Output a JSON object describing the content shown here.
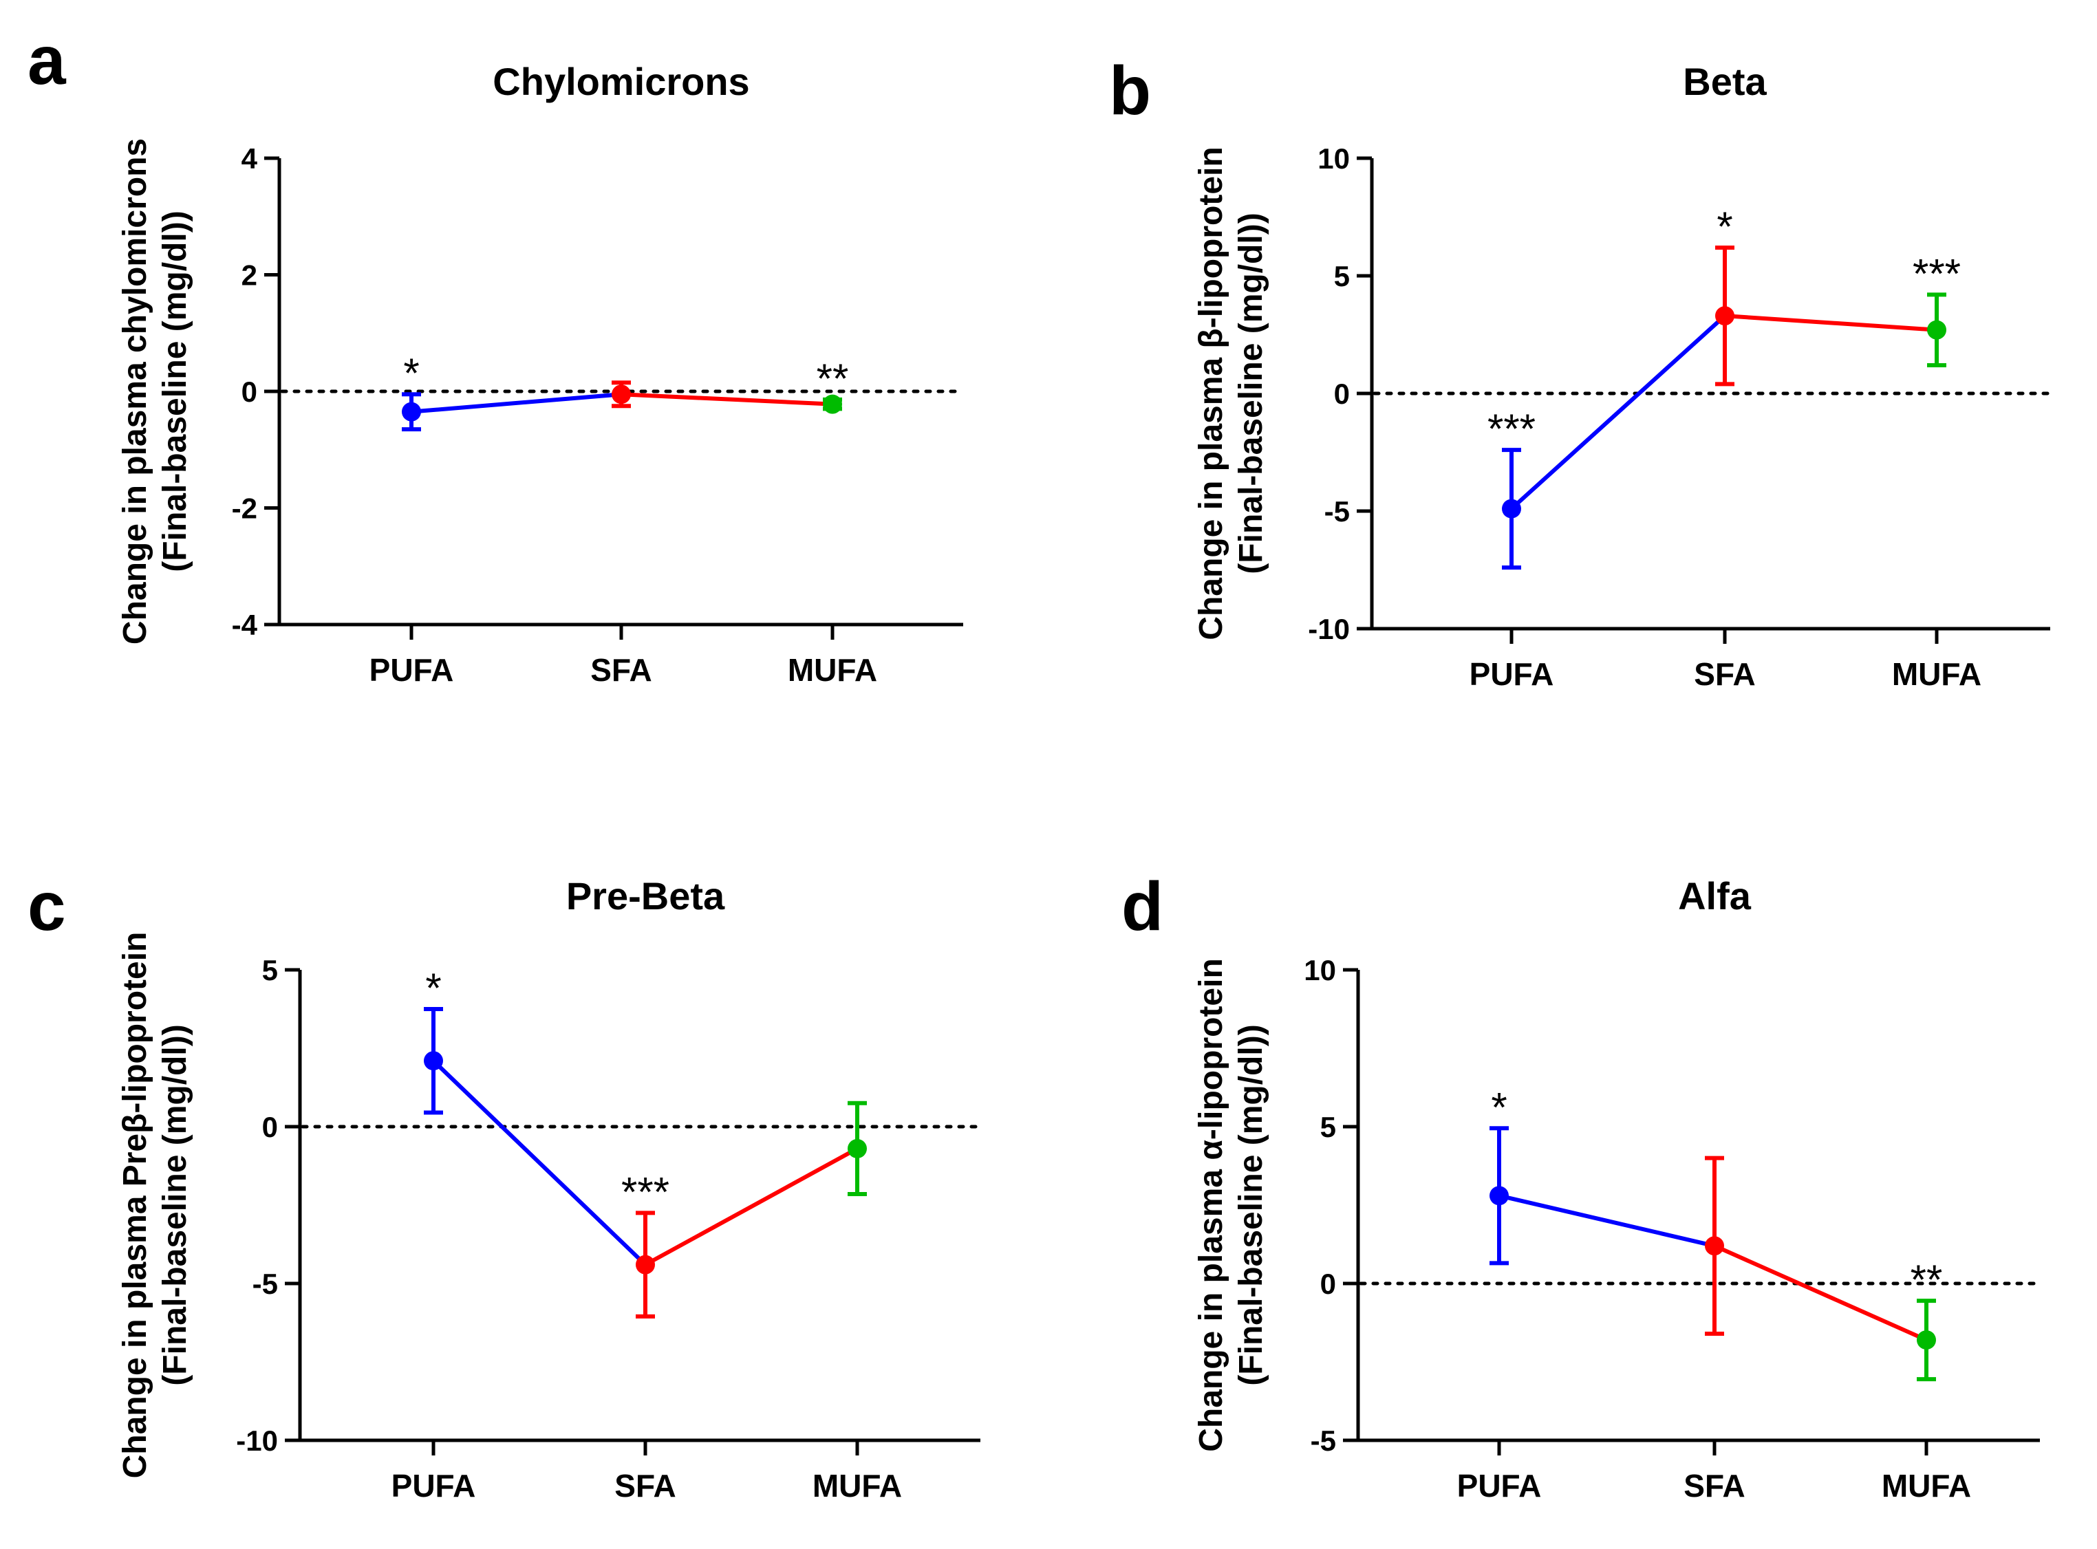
{
  "figure": {
    "panels": [
      "a",
      "b",
      "c",
      "d"
    ]
  },
  "chart_data": [
    {
      "panel": "a",
      "type": "line",
      "title": "Chylomicrons",
      "ylabel_line1": "Change in plasma  chylomicrons",
      "ylabel_line2": "(Final-baseline (mg/dl))",
      "categories": [
        "PUFA",
        "SFA",
        "MUFA"
      ],
      "values": [
        -0.35,
        -0.05,
        -0.22
      ],
      "error": [
        0.3,
        0.2,
        0.08
      ],
      "significance": [
        "*",
        "",
        "**"
      ],
      "colors": [
        "#0000ff",
        "#ff0000",
        "#00bb00"
      ],
      "ylim": [
        -4,
        4
      ],
      "yticks": [
        -4,
        -2,
        0,
        2,
        4
      ],
      "ytick_labels": [
        "-4",
        "-2",
        "0",
        "2",
        "4"
      ],
      "reference_line": 0
    },
    {
      "panel": "b",
      "type": "line",
      "title": "Beta",
      "ylabel_line1": "Change in plasma  β-lipoprotein",
      "ylabel_line2": "(Final-baseline (mg/dl))",
      "categories": [
        "PUFA",
        "SFA",
        "MUFA"
      ],
      "values": [
        -4.9,
        3.3,
        2.7
      ],
      "error": [
        2.5,
        2.9,
        1.5
      ],
      "significance": [
        "***",
        "*",
        "***"
      ],
      "colors": [
        "#0000ff",
        "#ff0000",
        "#00bb00"
      ],
      "ylim": [
        -10,
        10
      ],
      "yticks": [
        -10,
        -5,
        0,
        5,
        10
      ],
      "ytick_labels": [
        "-10",
        "-5",
        "0",
        "5",
        "10"
      ],
      "reference_line": 0
    },
    {
      "panel": "c",
      "type": "line",
      "title": "Pre-Beta",
      "ylabel_line1": "Change in plasma  Preβ-lipoprotein",
      "ylabel_line2": "(Final-baseline (mg/dl))",
      "categories": [
        "PUFA",
        "SFA",
        "MUFA"
      ],
      "values": [
        2.1,
        -4.4,
        -0.7
      ],
      "error": [
        1.65,
        1.65,
        1.45
      ],
      "significance": [
        "*",
        "***",
        ""
      ],
      "colors": [
        "#0000ff",
        "#ff0000",
        "#00bb00"
      ],
      "ylim": [
        -10,
        5
      ],
      "yticks": [
        -10,
        -5,
        0,
        5
      ],
      "ytick_labels": [
        "-10",
        "-5",
        "0",
        "5"
      ],
      "reference_line": 0
    },
    {
      "panel": "d",
      "type": "line",
      "title": "Alfa",
      "ylabel_line1": "Change in plasma  α-lipoprotein",
      "ylabel_line2": "(Final-baseline (mg/dl))",
      "categories": [
        "PUFA",
        "SFA",
        "MUFA"
      ],
      "values": [
        2.8,
        1.2,
        -1.8
      ],
      "error": [
        2.15,
        2.8,
        1.25
      ],
      "significance": [
        "*",
        "",
        "**"
      ],
      "colors": [
        "#0000ff",
        "#ff0000",
        "#00bb00"
      ],
      "ylim": [
        -5,
        10
      ],
      "yticks": [
        -5,
        0,
        5,
        10
      ],
      "ytick_labels": [
        "-5",
        "0",
        "5",
        "10"
      ],
      "reference_line": 0
    }
  ]
}
